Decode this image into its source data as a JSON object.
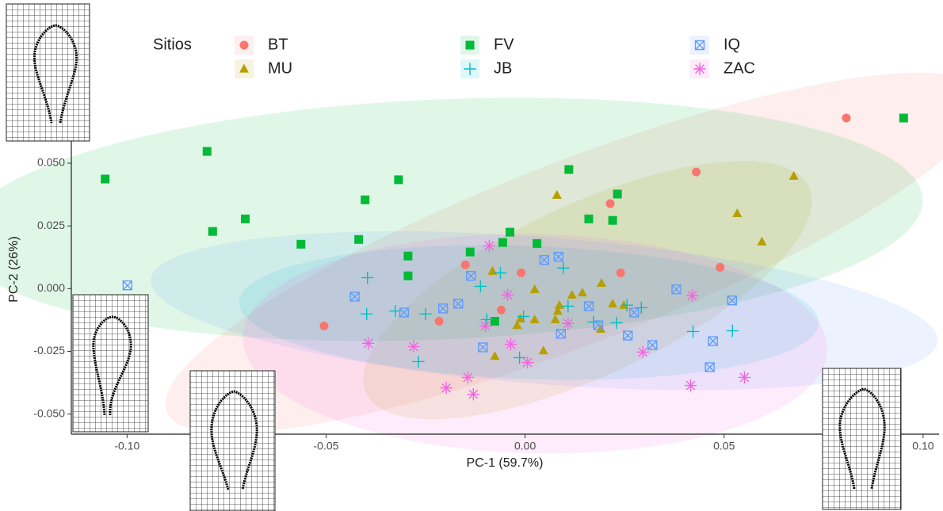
{
  "chart_data": {
    "type": "scatter",
    "x_label": "PC-1 (59.7%)",
    "y_label": "PC-2 (26%)",
    "legend_title": "Sitios",
    "xlim": [
      -0.114,
      0.104
    ],
    "ylim": [
      -0.058,
      0.074
    ],
    "xticks": [
      {
        "value": -0.1,
        "label": "-0.10"
      },
      -0.05,
      {
        "value": 0,
        "label": "0.00"
      },
      0.05,
      {
        "value": 0.1,
        "label": "0.10"
      }
    ],
    "yticks": [
      {
        "value": -0.05,
        "label": "-0.050"
      },
      -0.025,
      {
        "value": 0,
        "label": "0.000"
      },
      0.025,
      {
        "value": 0.05,
        "label": "0.050"
      }
    ],
    "ellipses": true,
    "series": [
      {
        "name": "BT",
        "color": "#F8766D",
        "marker": "circle",
        "x": [
          0.0807,
          0.043,
          0.0214,
          0.049,
          0.024,
          -0.001,
          -0.015,
          -0.0505,
          -0.0216,
          -0.006
        ],
        "values": [
          0.068,
          0.0465,
          0.0339,
          0.0085,
          0.0063,
          0.0063,
          0.0095,
          -0.0149,
          -0.013,
          -0.0085
        ]
      },
      {
        "name": "MU",
        "color": "#B79F00",
        "marker": "triangle",
        "x": [
          0.008,
          0.0675,
          0.0533,
          0.0595,
          -0.0082,
          0.0024,
          0.0192,
          0.0144,
          0.0118,
          0.0086,
          0.0082,
          0.022,
          0.0248,
          0.0076,
          0.0024,
          -0.0012,
          -0.002,
          0.019,
          -0.0076,
          0.0046
        ],
        "values": [
          0.0373,
          0.0449,
          0.03,
          0.0187,
          0.007,
          -0.0003,
          0.0022,
          -0.0016,
          -0.0025,
          -0.0066,
          -0.0089,
          -0.006,
          -0.0066,
          -0.0123,
          -0.0123,
          -0.012,
          -0.0146,
          -0.0161,
          -0.0269,
          -0.0247
        ]
      },
      {
        "name": "FV",
        "color": "#00BA38",
        "marker": "square",
        "x": [
          -0.1055,
          -0.0799,
          -0.0785,
          -0.0703,
          -0.0563,
          -0.0402,
          -0.0418,
          -0.0318,
          -0.0294,
          -0.0294,
          -0.0138,
          -0.0056,
          -0.0038,
          0.003,
          0.011,
          0.0232,
          0.016,
          0.022,
          -0.0076,
          0.0951
        ],
        "values": [
          0.0437,
          0.0547,
          0.0228,
          0.0278,
          0.0177,
          0.0354,
          0.0196,
          0.0434,
          0.013,
          0.0051,
          0.0146,
          0.0184,
          0.0225,
          0.018,
          0.0475,
          0.0377,
          0.0278,
          0.0272,
          -0.013,
          0.068
        ]
      },
      {
        "name": "JB",
        "color": "#00BFC4",
        "marker": "plus",
        "x": [
          -0.0396,
          -0.0398,
          -0.0326,
          -0.025,
          -0.0268,
          -0.0112,
          -0.0096,
          -0.0062,
          -0.0004,
          -0.0014,
          0.0096,
          0.0108,
          0.0172,
          0.023,
          0.0256,
          0.0292,
          0.0422,
          0.0521
        ],
        "values": [
          0.0044,
          -0.0101,
          -0.0089,
          -0.0101,
          -0.0291,
          0.0009,
          -0.0123,
          0.0063,
          -0.0111,
          -0.0275,
          0.0082,
          -0.007,
          -0.0133,
          -0.0136,
          -0.0066,
          -0.0076,
          -0.0171,
          -0.0168
        ]
      },
      {
        "name": "IQ",
        "color": "#619CFF",
        "marker": "boxx",
        "x": [
          -0.0999,
          -0.0428,
          -0.0304,
          -0.0206,
          -0.0168,
          -0.0136,
          0.0048,
          0.0084,
          0.016,
          0.0184,
          0.009,
          0.0258,
          0.0274,
          0.032,
          0.038,
          0.0472,
          0.0464,
          0.052,
          -0.0106
        ],
        "values": [
          0.0013,
          -0.0032,
          -0.0095,
          -0.0079,
          -0.006,
          0.0051,
          0.0114,
          0.0127,
          -0.007,
          -0.0146,
          -0.018,
          -0.0187,
          -0.0095,
          -0.0225,
          -0.0003,
          -0.0209,
          -0.0313,
          -0.0047,
          -0.0234
        ]
      },
      {
        "name": "ZAC",
        "color": "#F564E3",
        "marker": "asterisk",
        "x": [
          -0.009,
          -0.0044,
          -0.01,
          -0.0036,
          0.0006,
          0.0108,
          -0.0394,
          -0.028,
          -0.0198,
          -0.0144,
          -0.013,
          0.0296,
          0.042,
          0.0416,
          0.0551
        ],
        "values": [
          0.0171,
          -0.0025,
          -0.0149,
          -0.0222,
          -0.0294,
          -0.0139,
          -0.0218,
          -0.0231,
          -0.0396,
          -0.0354,
          -0.0421,
          -0.0253,
          -0.0028,
          -0.0386,
          -0.0354
        ]
      }
    ]
  }
}
